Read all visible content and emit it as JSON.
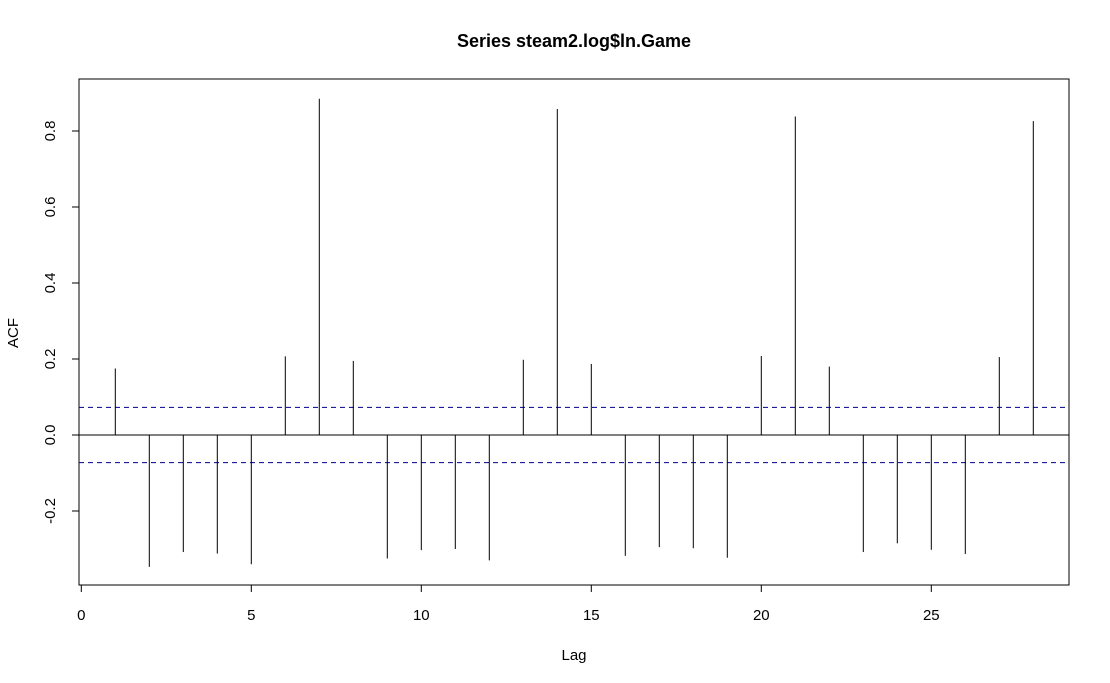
{
  "chart_data": {
    "type": "bar",
    "title": "Series steam2.log$ln.Game",
    "xlabel": "Lag",
    "ylabel": "ACF",
    "xlim": [
      0,
      29
    ],
    "ylim": [
      -0.35,
      0.9
    ],
    "x_ticks": [
      0,
      5,
      10,
      15,
      20,
      25
    ],
    "y_ticks": [
      -0.2,
      0.0,
      0.2,
      0.4,
      0.6,
      0.8
    ],
    "x_tick_labels": [
      "0",
      "5",
      "10",
      "15",
      "20",
      "25"
    ],
    "y_tick_labels": [
      "-0.2",
      "0.0",
      "0.2",
      "0.4",
      "0.6",
      "0.8"
    ],
    "lags": [
      1,
      2,
      3,
      4,
      5,
      6,
      7,
      8,
      9,
      10,
      11,
      12,
      13,
      14,
      15,
      16,
      17,
      18,
      19,
      20,
      21,
      22,
      23,
      24,
      25,
      26,
      27,
      28
    ],
    "values": [
      0.175,
      -0.347,
      -0.308,
      -0.312,
      -0.34,
      0.207,
      0.885,
      0.195,
      -0.325,
      -0.303,
      -0.3,
      -0.33,
      0.198,
      0.858,
      0.187,
      -0.318,
      -0.295,
      -0.298,
      -0.323,
      0.208,
      0.838,
      0.18,
      -0.308,
      -0.285,
      -0.302,
      -0.313,
      0.205,
      0.826
    ],
    "confidence_limit": 0.0728,
    "confidence_color": "#00008B",
    "grid": false
  }
}
